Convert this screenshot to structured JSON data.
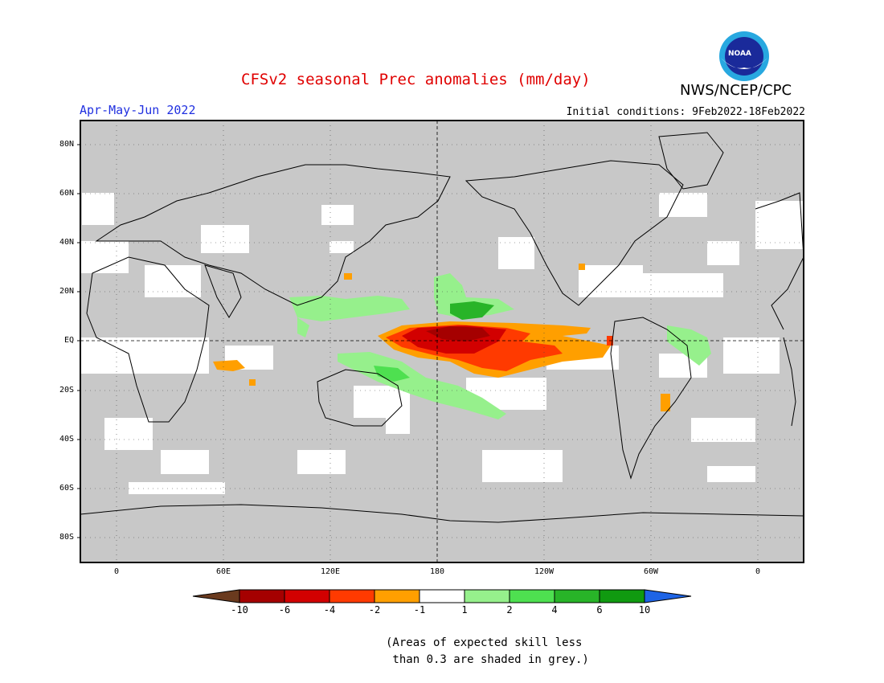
{
  "header": {
    "title": "CFSv2 seasonal Prec anomalies (mm/day)",
    "org": "NWS/NCEP/CPC",
    "season": "Apr-May-Jun 2022",
    "initial_conditions": "Initial conditions: 9Feb2022-18Feb2022",
    "logo_text": "NOAA"
  },
  "map": {
    "lat_labels": [
      "80N",
      "60N",
      "40N",
      "20N",
      "EQ",
      "20S",
      "40S",
      "60S",
      "80S"
    ],
    "lon_labels": [
      "0",
      "60E",
      "120E",
      "180",
      "120W",
      "60W",
      "0"
    ],
    "ocean_color": "#c8c8c8",
    "land_outline_color": "#000000"
  },
  "colorbar": {
    "labels": [
      "-10",
      "-6",
      "-4",
      "-2",
      "-1",
      "1",
      "2",
      "4",
      "6",
      "10"
    ],
    "colors": [
      "#6a3a1e",
      "#a50000",
      "#d20000",
      "#ff3a00",
      "#ff9f00",
      "#ffffff",
      "#96f08c",
      "#4ee050",
      "#28b428",
      "#109a10",
      "#1e64e6"
    ]
  },
  "footnote": "(Areas of expected skill less\n than 0.3 are shaded in grey.)"
}
